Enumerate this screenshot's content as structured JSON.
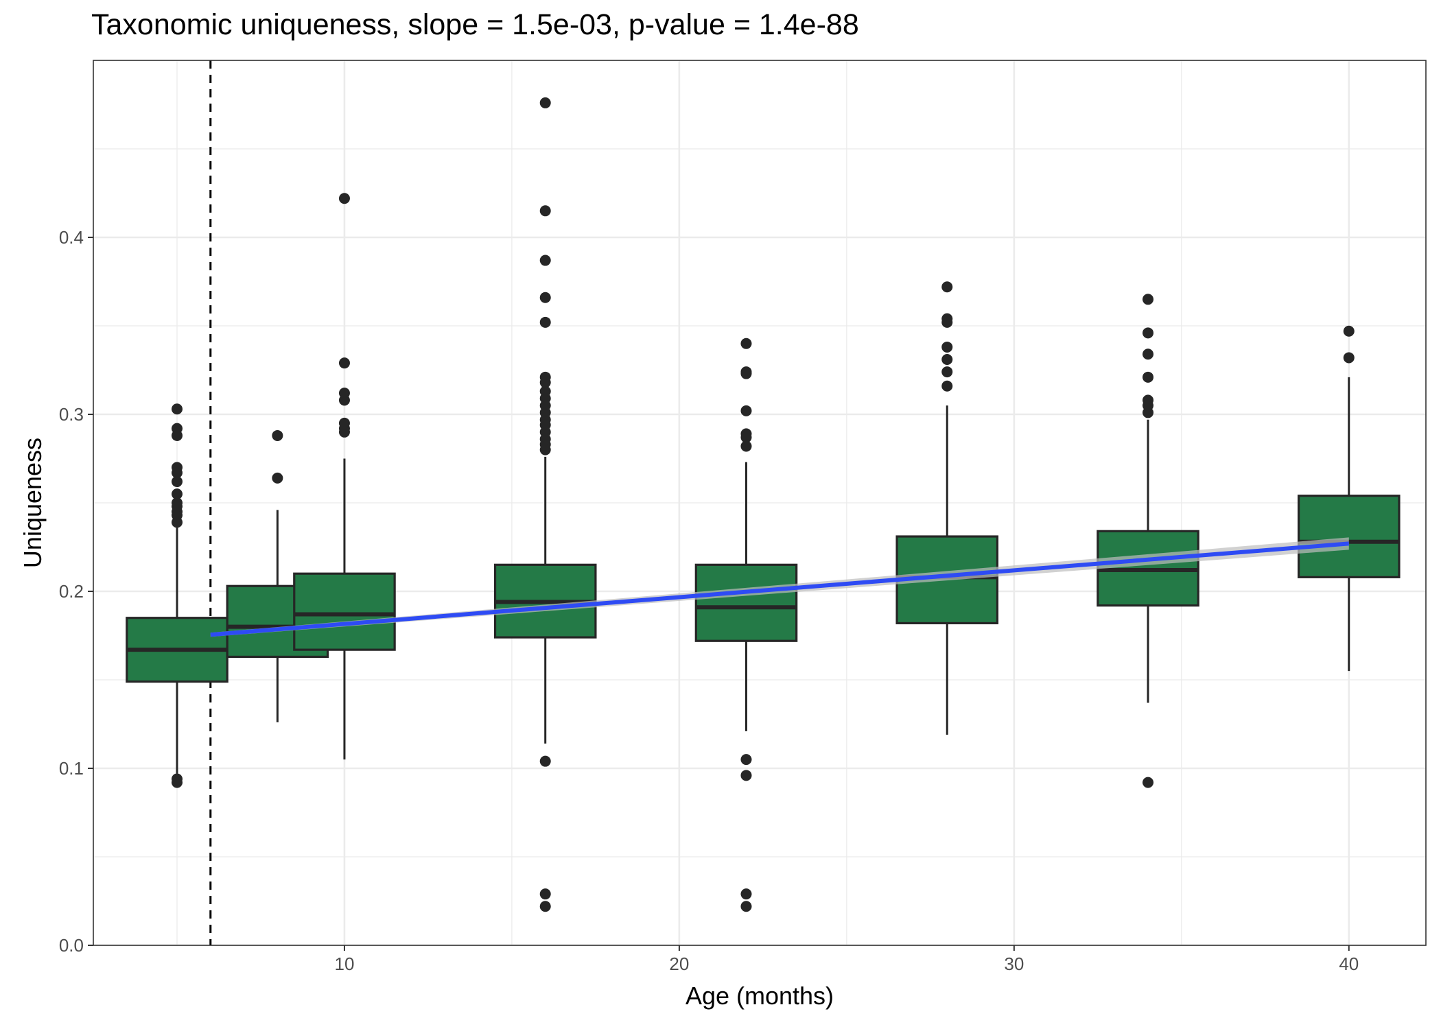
{
  "chart_data": {
    "type": "box",
    "title": "Taxonomic uniqueness, slope = 1.5e-03, p-value = 1.4e-88",
    "xlabel": "Age (months)",
    "ylabel": "Uniqueness",
    "xlim": [
      2.5,
      42.3
    ],
    "ylim": [
      0.0,
      0.5
    ],
    "x_ticks": [
      10,
      20,
      30,
      40
    ],
    "x_tick_labels": [
      "10",
      "20",
      "30",
      "40"
    ],
    "y_ticks": [
      0.0,
      0.1,
      0.2,
      0.3,
      0.4
    ],
    "y_tick_labels": [
      "0.0",
      "0.1",
      "0.2",
      "0.3",
      "0.4"
    ],
    "grid": true,
    "vline_x": 6,
    "boxes": [
      {
        "x": 5,
        "whisker_low": 0.097,
        "q1": 0.149,
        "median": 0.167,
        "q3": 0.185,
        "whisker_high": 0.236,
        "outliers": [
          0.092,
          0.094,
          0.239,
          0.243,
          0.245,
          0.248,
          0.25,
          0.255,
          0.262,
          0.267,
          0.27,
          0.288,
          0.292,
          0.303
        ]
      },
      {
        "x": 8,
        "whisker_low": 0.126,
        "q1": 0.163,
        "median": 0.18,
        "q3": 0.203,
        "whisker_high": 0.246,
        "outliers": [
          0.264,
          0.288
        ]
      },
      {
        "x": 10,
        "whisker_low": 0.105,
        "q1": 0.167,
        "median": 0.187,
        "q3": 0.21,
        "whisker_high": 0.275,
        "outliers": [
          0.29,
          0.292,
          0.295,
          0.308,
          0.312,
          0.329,
          0.422
        ]
      },
      {
        "x": 16,
        "whisker_low": 0.114,
        "q1": 0.174,
        "median": 0.194,
        "q3": 0.215,
        "whisker_high": 0.276,
        "outliers": [
          0.022,
          0.029,
          0.104,
          0.28,
          0.283,
          0.286,
          0.29,
          0.294,
          0.297,
          0.301,
          0.305,
          0.309,
          0.313,
          0.318,
          0.321,
          0.352,
          0.366,
          0.387,
          0.415,
          0.476
        ]
      },
      {
        "x": 22,
        "whisker_low": 0.121,
        "q1": 0.172,
        "median": 0.191,
        "q3": 0.215,
        "whisker_high": 0.273,
        "outliers": [
          0.022,
          0.029,
          0.096,
          0.105,
          0.282,
          0.287,
          0.289,
          0.302,
          0.323,
          0.324,
          0.34
        ]
      },
      {
        "x": 28,
        "whisker_low": 0.119,
        "q1": 0.182,
        "median": 0.208,
        "q3": 0.231,
        "whisker_high": 0.305,
        "outliers": [
          0.316,
          0.324,
          0.331,
          0.338,
          0.352,
          0.354,
          0.372
        ]
      },
      {
        "x": 34,
        "whisker_low": 0.137,
        "q1": 0.192,
        "median": 0.212,
        "q3": 0.234,
        "whisker_high": 0.297,
        "outliers": [
          0.092,
          0.301,
          0.305,
          0.308,
          0.321,
          0.334,
          0.346,
          0.365
        ]
      },
      {
        "x": 40,
        "whisker_low": 0.155,
        "q1": 0.208,
        "median": 0.228,
        "q3": 0.254,
        "whisker_high": 0.321,
        "outliers": [
          0.332,
          0.347
        ]
      }
    ],
    "trend_line": {
      "x_start": 6,
      "y_start": 0.1755,
      "x_end": 40,
      "y_end": 0.227
    },
    "colors": {
      "box_fill": "#247a47",
      "box_outline": "#262626",
      "trend": "#2e4bf4",
      "band": "#bdbdbd",
      "grid": "#ebebeb",
      "point": "#262626",
      "vline": "#000000"
    }
  }
}
